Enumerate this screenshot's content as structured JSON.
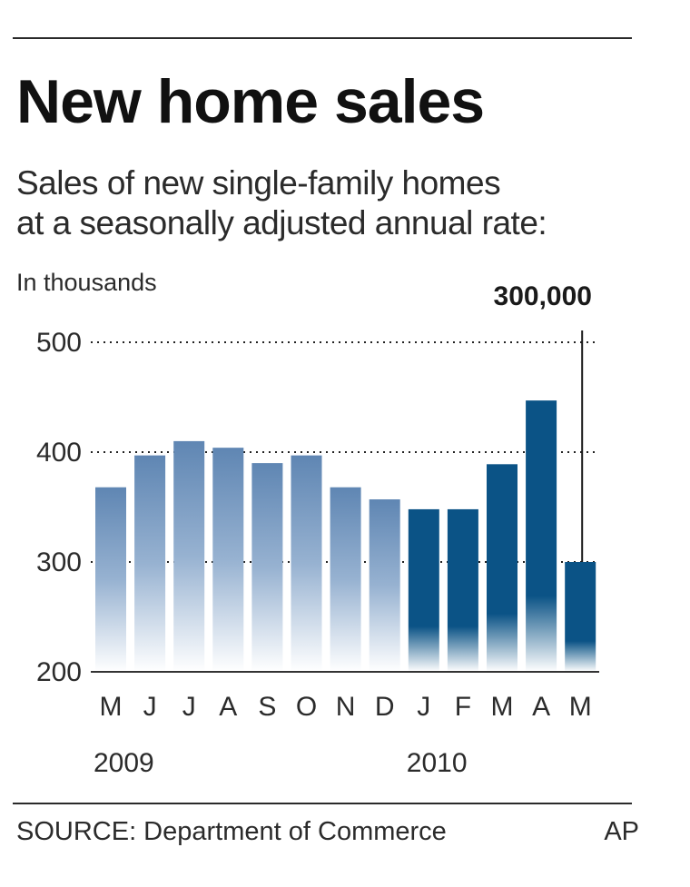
{
  "header": {
    "title": "New home sales",
    "subtitle_line1": "Sales of new single-family homes",
    "subtitle_line2": "at a seasonally adjusted annual rate:",
    "units": "In thousands"
  },
  "callout": {
    "label": "300,000",
    "target_index": 12
  },
  "footer": {
    "source": "SOURCE: Department of Commerce",
    "credit": "AP"
  },
  "colors": {
    "bar_2009": "#5f86b3",
    "bar_2010": "#0b5386",
    "gridline": "#222222",
    "axis": "#333333"
  },
  "chart_data": {
    "type": "bar",
    "categories": [
      "M",
      "J",
      "J",
      "A",
      "S",
      "O",
      "N",
      "D",
      "J",
      "F",
      "M",
      "A",
      "M"
    ],
    "values": [
      368,
      397,
      410,
      404,
      390,
      397,
      368,
      357,
      348,
      348,
      389,
      447,
      300
    ],
    "year_groups": [
      {
        "label": "2009",
        "start_index": 0,
        "end_index": 7
      },
      {
        "label": "2010",
        "start_index": 8,
        "end_index": 12
      }
    ],
    "yticks": [
      200,
      300,
      400,
      500
    ],
    "ylim": [
      200,
      500
    ],
    "grid": "dotted",
    "title": "New home sales",
    "xlabel": "",
    "ylabel": "In thousands"
  }
}
